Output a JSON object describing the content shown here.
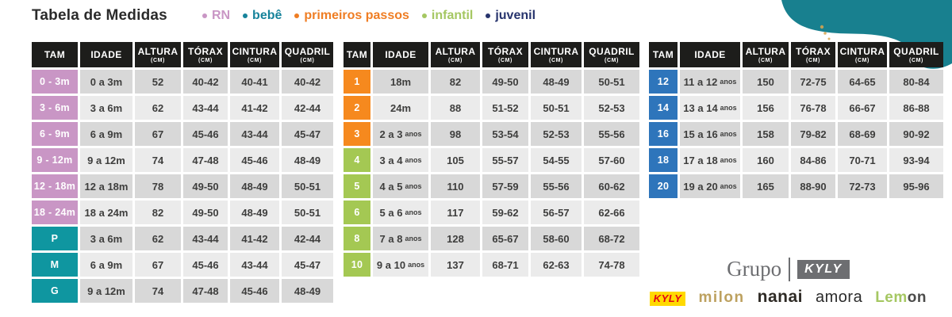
{
  "header": {
    "title": "Tabela de Medidas"
  },
  "legend": [
    {
      "label": "RN",
      "color": "#c996c5"
    },
    {
      "label": "bebê",
      "color": "#17839b"
    },
    {
      "label": "primeiros passos",
      "color": "#ef7d23"
    },
    {
      "label": "infantil",
      "color": "#a5c762"
    },
    {
      "label": "juvenil",
      "color": "#27346d"
    }
  ],
  "columns": [
    {
      "key": "tam",
      "label": "TAM"
    },
    {
      "key": "idade",
      "label": "IDADE"
    },
    {
      "key": "altura",
      "label": "ALTURA",
      "unit": "(CM)"
    },
    {
      "key": "torax",
      "label": "TÓRAX",
      "unit": "(CM)"
    },
    {
      "key": "cintura",
      "label": "CINTURA",
      "unit": "(CM)"
    },
    {
      "key": "quadril",
      "label": "QUADRIL",
      "unit": "(CM)"
    }
  ],
  "colors": {
    "rn_pink": "#c996c5",
    "bebe_teal": "#0f96a0",
    "primeiros_orange": "#f6891e",
    "infantil_green": "#a4c853",
    "juvenil_blue": "#2e75bb",
    "header_black": "#1d1d1b",
    "blob_teal": "#18808f"
  },
  "tables": [
    {
      "rows": [
        {
          "tam": "0 - 3m",
          "tam_color": "#c996c5",
          "idade": "0 a 3m",
          "altura": "52",
          "torax": "40-42",
          "cintura": "40-41",
          "quadril": "40-42"
        },
        {
          "tam": "3 - 6m",
          "tam_color": "#c996c5",
          "idade": "3 a 6m",
          "altura": "62",
          "torax": "43-44",
          "cintura": "41-42",
          "quadril": "42-44"
        },
        {
          "tam": "6 - 9m",
          "tam_color": "#c996c5",
          "idade": "6 a 9m",
          "altura": "67",
          "torax": "45-46",
          "cintura": "43-44",
          "quadril": "45-47"
        },
        {
          "tam": "9 - 12m",
          "tam_color": "#c996c5",
          "idade": "9 a 12m",
          "altura": "74",
          "torax": "47-48",
          "cintura": "45-46",
          "quadril": "48-49"
        },
        {
          "tam": "12 - 18m",
          "tam_color": "#c996c5",
          "idade": "12 a 18m",
          "altura": "78",
          "torax": "49-50",
          "cintura": "48-49",
          "quadril": "50-51"
        },
        {
          "tam": "18 - 24m",
          "tam_color": "#c996c5",
          "idade": "18 a 24m",
          "altura": "82",
          "torax": "49-50",
          "cintura": "48-49",
          "quadril": "50-51"
        },
        {
          "tam": "P",
          "tam_color": "#0f96a0",
          "idade": "3 a 6m",
          "altura": "62",
          "torax": "43-44",
          "cintura": "41-42",
          "quadril": "42-44"
        },
        {
          "tam": "M",
          "tam_color": "#0f96a0",
          "idade": "6 a 9m",
          "altura": "67",
          "torax": "45-46",
          "cintura": "43-44",
          "quadril": "45-47"
        },
        {
          "tam": "G",
          "tam_color": "#0f96a0",
          "idade": "9 a 12m",
          "altura": "74",
          "torax": "47-48",
          "cintura": "45-46",
          "quadril": "48-49"
        }
      ]
    },
    {
      "rows": [
        {
          "tam": "1",
          "tam_color": "#f6891e",
          "idade": "18m",
          "altura": "82",
          "torax": "49-50",
          "cintura": "48-49",
          "quadril": "50-51"
        },
        {
          "tam": "2",
          "tam_color": "#f6891e",
          "idade": "24m",
          "altura": "88",
          "torax": "51-52",
          "cintura": "50-51",
          "quadril": "52-53"
        },
        {
          "tam": "3",
          "tam_color": "#f6891e",
          "idade": "2 a 3",
          "idade_suffix": "anos",
          "altura": "98",
          "torax": "53-54",
          "cintura": "52-53",
          "quadril": "55-56"
        },
        {
          "tam": "4",
          "tam_color": "#a4c853",
          "idade": "3 a 4",
          "idade_suffix": "anos",
          "altura": "105",
          "torax": "55-57",
          "cintura": "54-55",
          "quadril": "57-60"
        },
        {
          "tam": "5",
          "tam_color": "#a4c853",
          "idade": "4 a 5",
          "idade_suffix": "anos",
          "altura": "110",
          "torax": "57-59",
          "cintura": "55-56",
          "quadril": "60-62"
        },
        {
          "tam": "6",
          "tam_color": "#a4c853",
          "idade": "5 a 6",
          "idade_suffix": "anos",
          "altura": "117",
          "torax": "59-62",
          "cintura": "56-57",
          "quadril": "62-66"
        },
        {
          "tam": "8",
          "tam_color": "#a4c853",
          "idade": "7 a 8",
          "idade_suffix": "anos",
          "altura": "128",
          "torax": "65-67",
          "cintura": "58-60",
          "quadril": "68-72"
        },
        {
          "tam": "10",
          "tam_color": "#a4c853",
          "idade": "9 a 10",
          "idade_suffix": "anos",
          "altura": "137",
          "torax": "68-71",
          "cintura": "62-63",
          "quadril": "74-78"
        }
      ]
    },
    {
      "rows": [
        {
          "tam": "12",
          "tam_color": "#2e75bb",
          "idade": "11 a 12",
          "idade_suffix": "anos",
          "altura": "150",
          "torax": "72-75",
          "cintura": "64-65",
          "quadril": "80-84"
        },
        {
          "tam": "14",
          "tam_color": "#2e75bb",
          "idade": "13 a 14",
          "idade_suffix": "anos",
          "altura": "156",
          "torax": "76-78",
          "cintura": "66-67",
          "quadril": "86-88"
        },
        {
          "tam": "16",
          "tam_color": "#2e75bb",
          "idade": "15 a 16",
          "idade_suffix": "anos",
          "altura": "158",
          "torax": "79-82",
          "cintura": "68-69",
          "quadril": "90-92"
        },
        {
          "tam": "18",
          "tam_color": "#2e75bb",
          "idade": "17 a 18",
          "idade_suffix": "anos",
          "altura": "160",
          "torax": "84-86",
          "cintura": "70-71",
          "quadril": "93-94"
        },
        {
          "tam": "20",
          "tam_color": "#2e75bb",
          "idade": "19 a 20",
          "idade_suffix": "anos",
          "altura": "165",
          "torax": "88-90",
          "cintura": "72-73",
          "quadril": "95-96"
        }
      ]
    }
  ],
  "footer": {
    "group_label": "Grupo",
    "group_brand": "KYLY",
    "brands": {
      "kyly": "KYLY",
      "milon": "milon",
      "nanai": "nanai",
      "amora": "amora",
      "lemon_green": "Lem",
      "lemon_dark": "on"
    }
  }
}
